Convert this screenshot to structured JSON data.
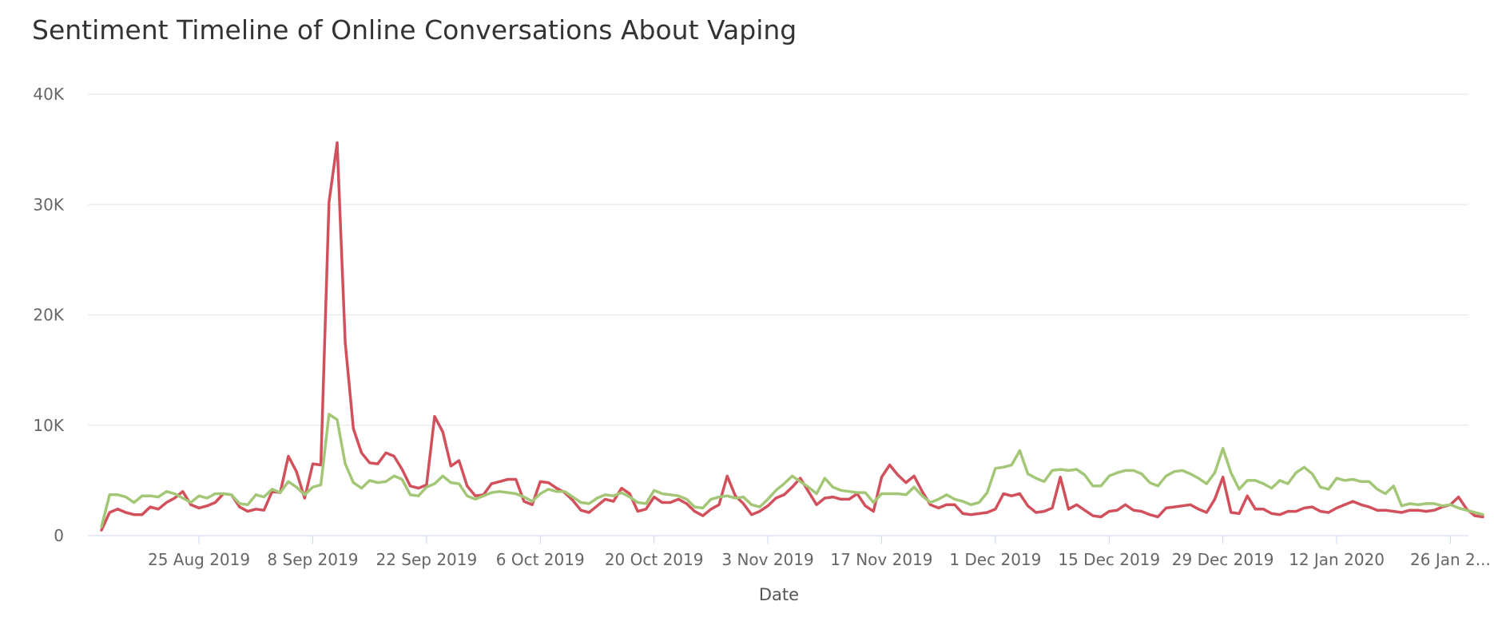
{
  "chart_data": {
    "type": "line",
    "title": "Sentiment Timeline of Online Conversations About Vaping",
    "xlabel": "Date",
    "ylabel": "",
    "ylim": [
      0,
      40000
    ],
    "yticks": [
      0,
      10000,
      20000,
      30000,
      40000
    ],
    "ytick_labels": [
      "0",
      "10K",
      "20K",
      "30K",
      "40K"
    ],
    "xticks": [
      "25 Aug 2019",
      "8 Sep 2019",
      "22 Sep 2019",
      "6 Oct 2019",
      "20 Oct 2019",
      "3 Nov 2019",
      "17 Nov 2019",
      "1 Dec 2019",
      "15 Dec 2019",
      "29 Dec 2019",
      "12 Jan 2020",
      "26 Jan 2..."
    ],
    "grid": true,
    "legend": "none",
    "start_date": "2019-08-13",
    "series": [
      {
        "color": "#d2505c",
        "values": [
          500,
          2100,
          2400,
          2100,
          1900,
          1900,
          2600,
          2400,
          3000,
          3400,
          4000,
          2800,
          2500,
          2700,
          3000,
          3800,
          3700,
          2600,
          2200,
          2400,
          2300,
          4000,
          3900,
          7200,
          5800,
          3400,
          6500,
          6400,
          30200,
          35600,
          17500,
          9700,
          7500,
          6600,
          6500,
          7500,
          7200,
          6000,
          4500,
          4300,
          4600,
          10800,
          9400,
          6300,
          6800,
          4500,
          3600,
          3700,
          4700,
          4900,
          5100,
          5100,
          3100,
          2800,
          4900,
          4800,
          4300,
          3900,
          3200,
          2300,
          2100,
          2700,
          3300,
          3100,
          4300,
          3800,
          2200,
          2400,
          3500,
          3000,
          3000,
          3300,
          2900,
          2200,
          1800,
          2400,
          2800,
          5400,
          3600,
          2900,
          1900,
          2200,
          2700,
          3400,
          3700,
          4400,
          5200,
          4000,
          2800,
          3400,
          3500,
          3300,
          3300,
          3800,
          2700,
          2200,
          5300,
          6400,
          5500,
          4800,
          5400,
          4000,
          2800,
          2500,
          2800,
          2800,
          2000,
          1900,
          2000,
          2100,
          2400,
          3800,
          3600,
          3800,
          2700,
          2100,
          2200,
          2500,
          5300,
          2400,
          2800,
          2300,
          1800,
          1700,
          2200,
          2300,
          2800,
          2300,
          2200,
          1900,
          1700,
          2500,
          2600,
          2700,
          2800,
          2400,
          2100,
          3300,
          5300,
          2100,
          2000,
          3600,
          2400,
          2400,
          2000,
          1900,
          2200,
          2200,
          2500,
          2600,
          2200,
          2100,
          2500,
          2800,
          3100,
          2800,
          2600,
          2300,
          2300,
          2200,
          2100,
          2300,
          2300,
          2200,
          2300,
          2600,
          2800,
          3500,
          2400,
          1800,
          1700
        ]
      },
      {
        "color": "#a3c777",
        "values": [
          800,
          3700,
          3700,
          3500,
          3000,
          3600,
          3600,
          3500,
          4000,
          3800,
          3400,
          3000,
          3600,
          3400,
          3800,
          3800,
          3700,
          2900,
          2800,
          3700,
          3500,
          4200,
          3900,
          4900,
          4400,
          3700,
          4400,
          4600,
          11000,
          10500,
          6500,
          4800,
          4300,
          5000,
          4800,
          4900,
          5400,
          5100,
          3700,
          3600,
          4400,
          4700,
          5400,
          4800,
          4700,
          3600,
          3300,
          3600,
          3900,
          4000,
          3900,
          3800,
          3500,
          3100,
          3800,
          4200,
          4000,
          4000,
          3500,
          3000,
          2900,
          3400,
          3700,
          3600,
          3900,
          3500,
          3000,
          2900,
          4100,
          3800,
          3700,
          3600,
          3300,
          2600,
          2500,
          3300,
          3500,
          3600,
          3400,
          3500,
          2800,
          2600,
          3300,
          4100,
          4700,
          5400,
          4900,
          4400,
          3800,
          5200,
          4400,
          4100,
          4000,
          3900,
          3900,
          3000,
          3800,
          3800,
          3800,
          3700,
          4400,
          3600,
          3000,
          3300,
          3700,
          3300,
          3100,
          2800,
          3000,
          3900,
          6100,
          6200,
          6400,
          7700,
          5600,
          5200,
          4900,
          5900,
          6000,
          5900,
          6000,
          5500,
          4500,
          4500,
          5400,
          5700,
          5900,
          5900,
          5600,
          4800,
          4500,
          5400,
          5800,
          5900,
          5600,
          5200,
          4700,
          5700,
          7900,
          5700,
          4200,
          5000,
          5000,
          4700,
          4300,
          5000,
          4700,
          5700,
          6200,
          5600,
          4400,
          4200,
          5200,
          5000,
          5100,
          4900,
          4900,
          4200,
          3800,
          4500,
          2700,
          2900,
          2800,
          2900,
          2900,
          2700,
          2800,
          2500,
          2300,
          2100,
          1900
        ]
      }
    ]
  }
}
